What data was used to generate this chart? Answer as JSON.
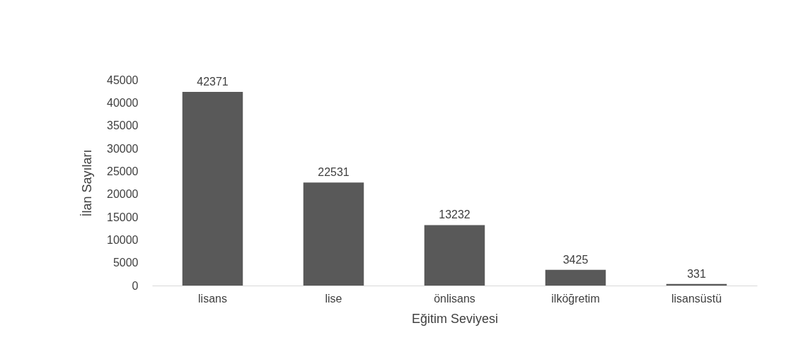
{
  "chart_data": {
    "type": "bar",
    "xlabel": "Eğitim Seviyesi",
    "ylabel": "İlan Sayıları",
    "categories": [
      "lisans",
      "lise",
      "önlisans",
      "ilköğretim",
      "lisansüstü"
    ],
    "values": [
      42371,
      22531,
      13232,
      3425,
      331
    ],
    "color": "#595959",
    "ylim": [
      0,
      45000
    ],
    "yticks": [
      0,
      5000,
      10000,
      15000,
      20000,
      25000,
      30000,
      35000,
      40000,
      45000
    ],
    "grid": false,
    "data_labels": true
  }
}
